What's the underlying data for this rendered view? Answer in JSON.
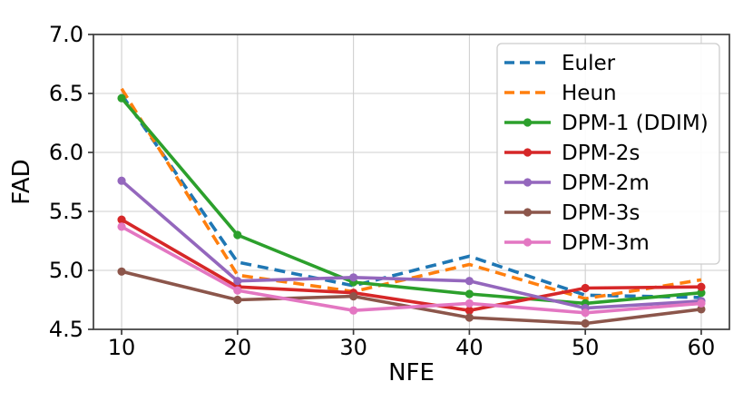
{
  "background": "#ffffff",
  "chart_data": {
    "type": "line",
    "title": "",
    "xlabel": "NFE",
    "ylabel": "FAD",
    "x": [
      10,
      20,
      30,
      40,
      50,
      60
    ],
    "xtick_labels": [
      "10",
      "20",
      "30",
      "40",
      "50",
      "60"
    ],
    "yticks": [
      7.0,
      6.5,
      6.0,
      5.5,
      5.0,
      4.5
    ],
    "ytick_labels": [
      "7.0",
      "6.5",
      "6.0",
      "5.5",
      "5.0",
      "4.5"
    ],
    "xlim": [
      7.57,
      62.43
    ],
    "ylim": [
      4.5,
      7.0
    ],
    "grid": true,
    "legend_position": "upper right",
    "axis_colors": {
      "spine": "#3c3c3c",
      "grid": "#cfcfcf",
      "text": "#000000"
    },
    "series": [
      {
        "name": "Euler",
        "slug": "euler",
        "color": "#1f77b4",
        "linestyle": "dashed",
        "marker": "none",
        "values": [
          6.49,
          5.07,
          4.87,
          5.12,
          4.79,
          4.77
        ]
      },
      {
        "name": "Heun",
        "slug": "heun",
        "color": "#ff7f0e",
        "linestyle": "dashed",
        "marker": "none",
        "values": [
          6.54,
          4.96,
          4.82,
          5.05,
          4.76,
          4.92
        ]
      },
      {
        "name": "DPM-1 (DDIM)",
        "slug": "dpm-1-ddim",
        "color": "#2ca02c",
        "linestyle": "solid",
        "marker": "circle",
        "values": [
          6.46,
          5.3,
          4.9,
          4.8,
          4.72,
          4.81
        ]
      },
      {
        "name": "DPM-2s",
        "slug": "dpm-2s",
        "color": "#d62728",
        "linestyle": "solid",
        "marker": "circle",
        "values": [
          5.43,
          4.86,
          4.81,
          4.66,
          4.85,
          4.86
        ]
      },
      {
        "name": "DPM-2m",
        "slug": "dpm-2m",
        "color": "#9467bd",
        "linestyle": "solid",
        "marker": "circle",
        "values": [
          5.76,
          4.91,
          4.94,
          4.91,
          4.68,
          4.74
        ]
      },
      {
        "name": "DPM-3s",
        "slug": "dpm-3s",
        "color": "#8c564b",
        "linestyle": "solid",
        "marker": "circle",
        "values": [
          4.99,
          4.75,
          4.78,
          4.6,
          4.55,
          4.67
        ]
      },
      {
        "name": "DPM-3m",
        "slug": "dpm-3m",
        "color": "#e377c2",
        "linestyle": "solid",
        "marker": "circle",
        "values": [
          5.37,
          4.83,
          4.66,
          4.72,
          4.64,
          4.72
        ]
      }
    ]
  }
}
